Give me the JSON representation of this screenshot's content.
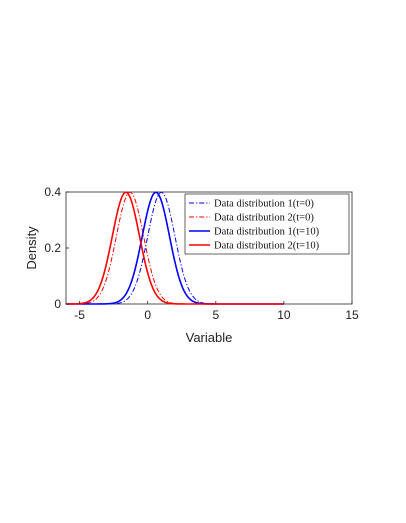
{
  "chart_data": {
    "type": "line",
    "xlabel": "Variable",
    "ylabel": "Density",
    "xlim": [
      -6,
      15
    ],
    "ylim": [
      0,
      0.4
    ],
    "x_ticks": [
      -5,
      0,
      5,
      10,
      15
    ],
    "y_ticks": [
      0,
      0.2,
      0.4
    ],
    "x_tick_labels": [
      "-5",
      "0",
      "5",
      "10",
      "15"
    ],
    "y_tick_labels": [
      "0",
      "0.2",
      "0.4"
    ],
    "x_range_plotted": [
      -6,
      10
    ],
    "grid": false,
    "legend_position": "top-right",
    "series": [
      {
        "name": "Data distribution 1(t=0)",
        "distribution": "normal",
        "mean": 1.0,
        "sd": 1.0,
        "color": "#0000ff",
        "style": "dash-dot"
      },
      {
        "name": "Data distribution 2(t=0)",
        "distribution": "normal",
        "mean": -1.3,
        "sd": 1.0,
        "color": "#ff0000",
        "style": "dash-dot"
      },
      {
        "name": "Data distribution 1(t=10)",
        "distribution": "normal",
        "mean": 0.6,
        "sd": 1.0,
        "color": "#0000ff",
        "style": "solid"
      },
      {
        "name": "Data distribution 2(t=10)",
        "distribution": "normal",
        "mean": -1.6,
        "sd": 1.0,
        "color": "#ff0000",
        "style": "solid"
      }
    ]
  }
}
